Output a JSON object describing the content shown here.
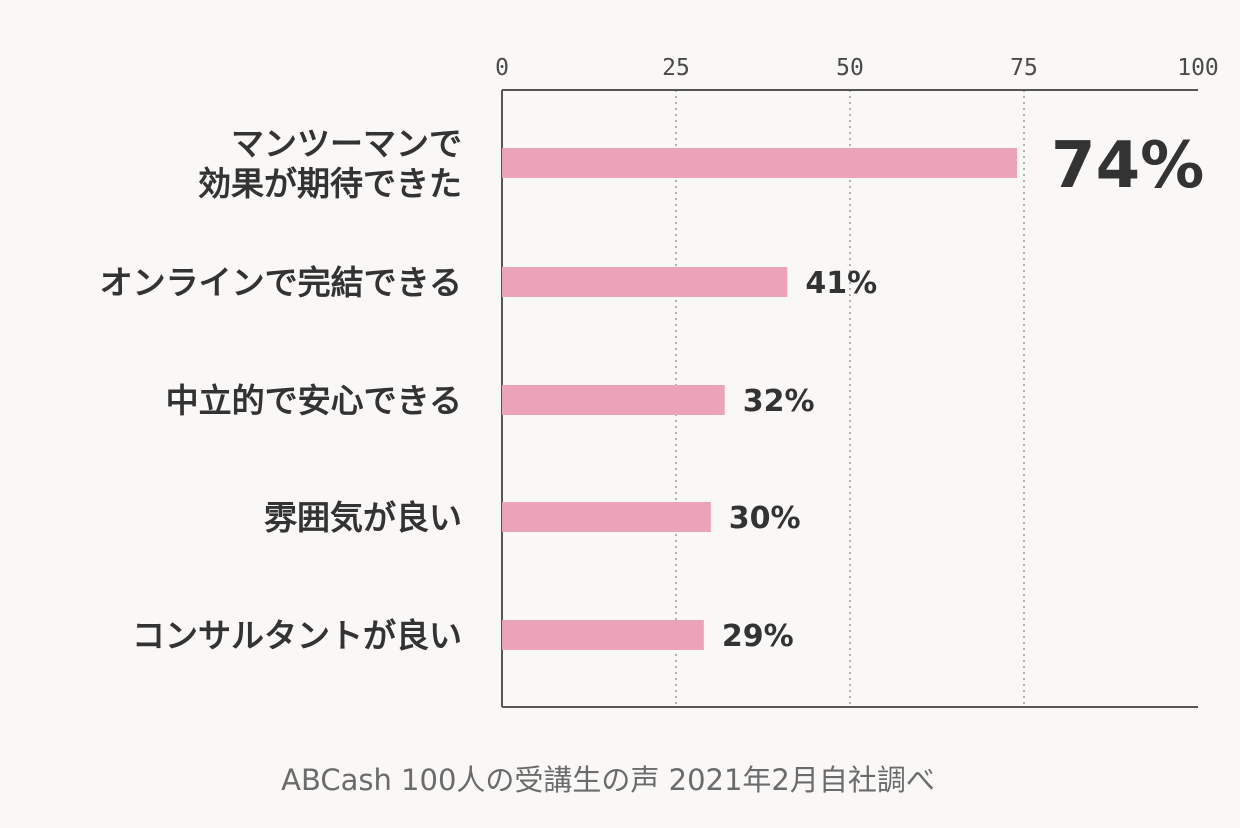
{
  "chart_data": {
    "type": "bar",
    "orientation": "horizontal",
    "categories": [
      [
        "マンツーマンで",
        "効果が期待できた"
      ],
      [
        "オンラインで完結できる"
      ],
      [
        "中立的で安心できる"
      ],
      [
        "雰囲気が良い"
      ],
      [
        "コンサルタントが良い"
      ]
    ],
    "values": [
      74,
      41,
      32,
      30,
      29
    ],
    "value_labels": [
      "74%",
      "41%",
      "32%",
      "30%",
      "29%"
    ],
    "xlim": [
      0,
      100
    ],
    "xticks": [
      0,
      25,
      50,
      75,
      100
    ],
    "tick_labels": [
      "0",
      "25",
      "50",
      "75",
      "100"
    ],
    "grid": "vertical dotted",
    "bar_color": "#eba3ba",
    "caption": "ABCash 100人の受講生の声  2021年2月自社調べ"
  },
  "colors": {
    "background": "#f9f8f6",
    "bar": "#eba3ba",
    "axis": "#555555",
    "text": "#333333",
    "grid": "#9a9a9a"
  }
}
